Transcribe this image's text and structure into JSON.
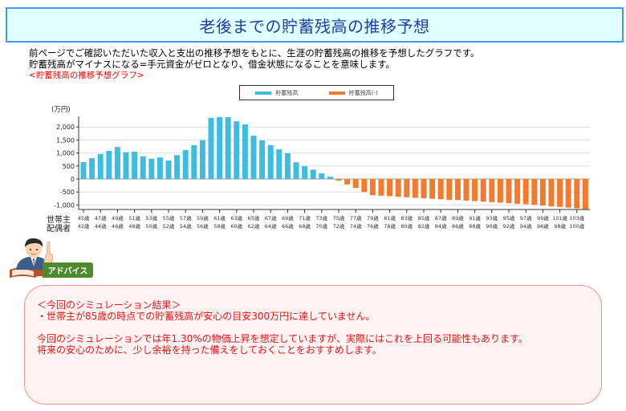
{
  "header": {
    "title": "老後までの貯蓄残高の推移予想"
  },
  "intro": {
    "line1": "前ページでご確認いただいた収入と支出の推移予想をもとに、生涯の貯蓄残高の推移を予想したグラフです。",
    "line2": "貯蓄残高がマイナスになる=手元資金がゼロとなり、借金状態になることを意味します。",
    "graph_caption": "<貯蓄残高の推移予想グラフ>"
  },
  "legend": {
    "positive_label": "貯蓄残高",
    "negative_label": "貯蓄残高(-)"
  },
  "colors": {
    "positive": "#3fbde0",
    "negative": "#f57a2e",
    "title_bg": "#e0ffff",
    "title_border": "#3a9cf5",
    "title_text": "#1a3fa8",
    "advice_text": "#ee1111",
    "advice_tag": "#4f8a2d"
  },
  "axis": {
    "y_unit": "(万円)",
    "row_label_head": "世帯主",
    "row_label_spouse": "配偶者"
  },
  "chart_data": {
    "type": "bar",
    "title": "貯蓄残高の推移予想グラフ",
    "xlabel": "世帯主 / 配偶者 年齢",
    "ylabel": "(万円)",
    "ylim": [
      -1150,
      2400
    ],
    "yticks": [
      -1000,
      -500,
      0,
      500,
      1000,
      1500,
      2000
    ],
    "ytick_labels": [
      "-1,000",
      "-500",
      "0",
      "500",
      "1,000",
      "1,500",
      "2,000"
    ],
    "grid": true,
    "legend_position": "top",
    "head_ages": [
      45,
      46,
      47,
      48,
      49,
      50,
      51,
      52,
      53,
      54,
      55,
      56,
      57,
      58,
      59,
      60,
      61,
      62,
      63,
      64,
      65,
      66,
      67,
      68,
      69,
      70,
      71,
      72,
      73,
      74,
      75,
      76,
      77,
      78,
      79,
      80,
      81,
      82,
      83,
      84,
      85,
      86,
      87,
      88,
      89,
      90,
      91,
      92,
      93,
      94,
      95,
      96,
      97,
      98,
      99,
      100,
      101,
      102,
      103,
      104
    ],
    "head_tick_labels": [
      "45歳",
      "47歳",
      "49歳",
      "51歳",
      "53歳",
      "55歳",
      "57歳",
      "59歳",
      "61歳",
      "63歳",
      "65歳",
      "67歳",
      "69歳",
      "71歳",
      "73歳",
      "75歳",
      "77歳",
      "79歳",
      "81歳",
      "83歳",
      "85歳",
      "87歳",
      "89歳",
      "91歳",
      "93歳",
      "95歳",
      "97歳",
      "99歳",
      "101歳",
      "103歳"
    ],
    "spouse_tick_labels": [
      "42歳",
      "44歳",
      "46歳",
      "48歳",
      "50歳",
      "52歳",
      "54歳",
      "56歳",
      "58歳",
      "60歳",
      "62歳",
      "64歳",
      "66歳",
      "68歳",
      "70歳",
      "72歳",
      "74歳",
      "76歳",
      "78歳",
      "80歳",
      "82歳",
      "84歳",
      "86歳",
      "88歳",
      "90歳",
      "92歳",
      "94歳",
      "96歳",
      "98歳",
      "100歳"
    ],
    "series": [
      {
        "name": "貯蓄残高",
        "values": [
          650,
          800,
          960,
          1080,
          1230,
          1030,
          1050,
          870,
          780,
          830,
          710,
          920,
          1110,
          1300,
          1490,
          2350,
          2380,
          2380,
          2220,
          2100,
          1670,
          1480,
          1300,
          1140,
          990,
          640,
          490,
          360,
          220,
          90,
          null,
          null,
          null,
          null,
          null,
          null,
          null,
          null,
          null,
          null,
          null,
          null,
          null,
          null,
          null,
          null,
          null,
          null,
          null,
          null,
          null,
          null,
          null,
          null,
          null,
          null,
          null,
          null,
          null,
          null
        ]
      },
      {
        "name": "貯蓄残高(-)",
        "values": [
          null,
          null,
          null,
          null,
          null,
          null,
          null,
          null,
          null,
          null,
          null,
          null,
          null,
          null,
          null,
          null,
          null,
          null,
          null,
          null,
          null,
          null,
          null,
          null,
          null,
          null,
          null,
          null,
          null,
          null,
          -60,
          -210,
          -340,
          -500,
          -620,
          -640,
          -660,
          -680,
          -700,
          -720,
          -740,
          -760,
          -780,
          -800,
          -810,
          -830,
          -850,
          -870,
          -890,
          -910,
          -930,
          -950,
          -970,
          -990,
          -1020,
          -1050,
          -1070,
          -1100,
          -1130,
          -1160
        ]
      }
    ]
  },
  "advice": {
    "tag_label": "アドバイス",
    "icon": "advisor-man-pointing-icon",
    "result_heading": "＜今回のシミュレーション結果＞",
    "result_line": "・世帯主が85歳の時点での貯蓄残高が安心の目安300万円に達していません。",
    "note_line1": "今回のシミュレーションでは年1.30%の物価上昇を想定していますが、実際にはこれを上回る可能性もあります。",
    "note_line2": "将来の安心のために、少し余裕を持った備えをしておくことをおすすめします。"
  }
}
